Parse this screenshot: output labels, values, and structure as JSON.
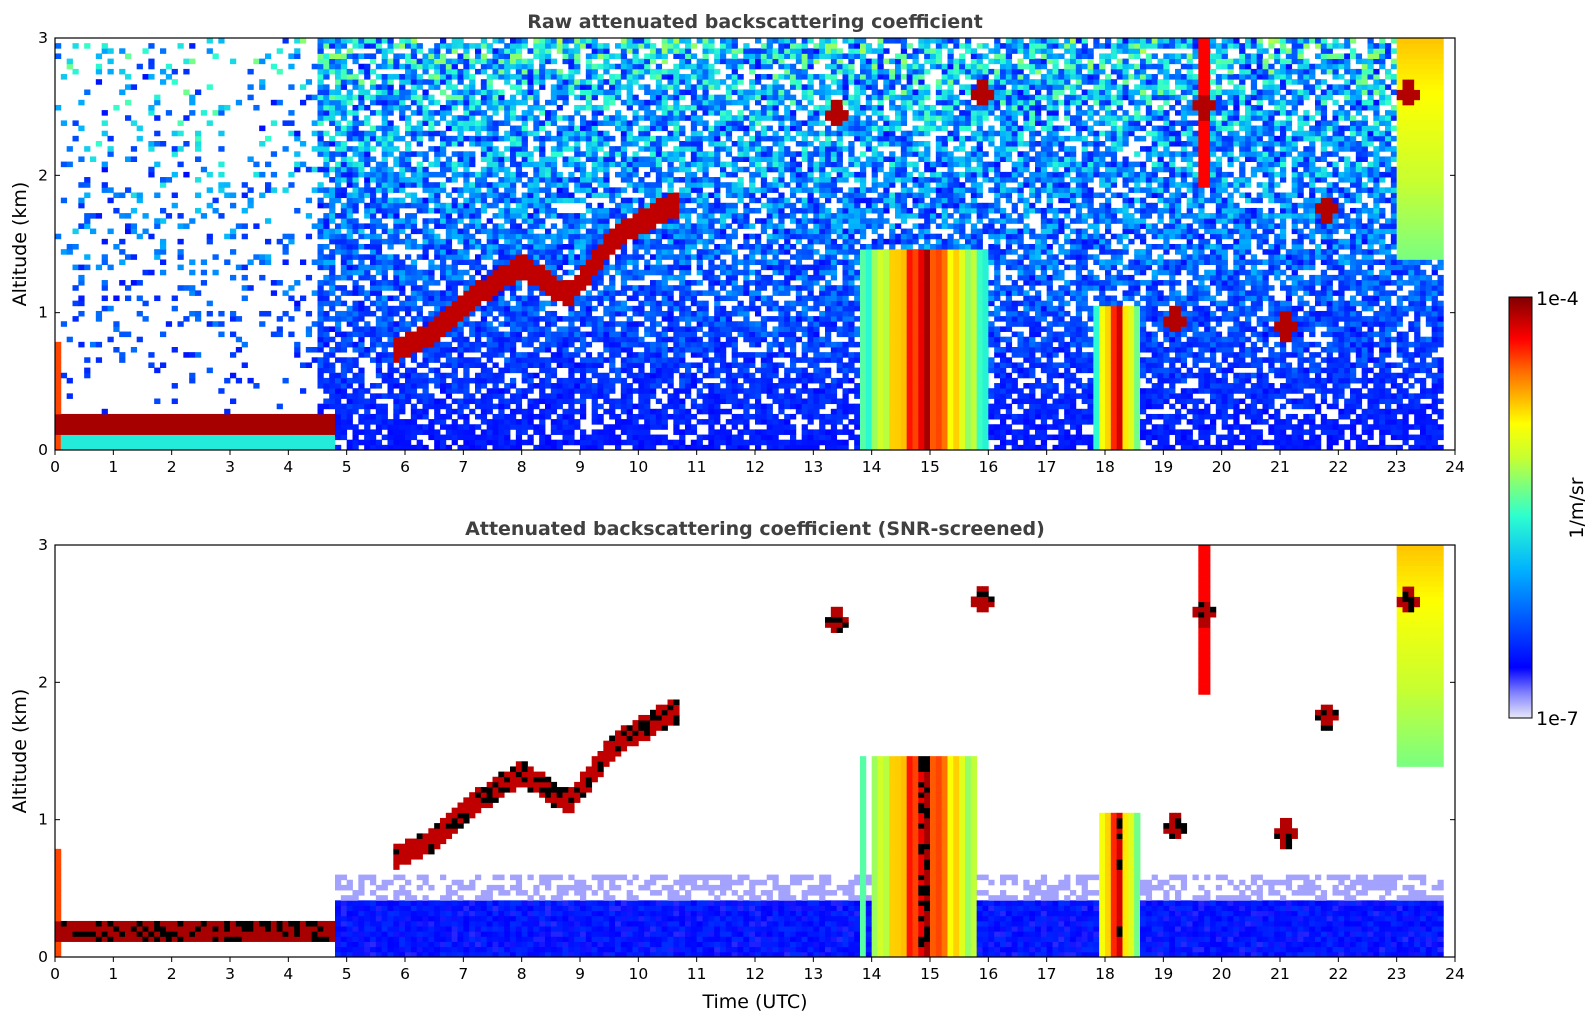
{
  "chart_data": [
    {
      "type": "heatmap",
      "title": "Raw attenuated backscattering coefficient",
      "xlabel": "",
      "ylabel": "Altitude (km)",
      "xlim": [
        0,
        24
      ],
      "ylim": [
        0,
        3
      ],
      "xticks": [
        "0",
        "1",
        "2",
        "3",
        "4",
        "5",
        "6",
        "7",
        "8",
        "9",
        "10",
        "11",
        "12",
        "13",
        "14",
        "15",
        "16",
        "17",
        "18",
        "19",
        "20",
        "21",
        "22",
        "23",
        "24"
      ],
      "yticks": [
        "0",
        "1",
        "2",
        "3"
      ],
      "layers": [
        {
          "feature": "near-surface aerosol layer",
          "start": 0.0,
          "end": 4.8,
          "base": 0.1,
          "top": 0.25,
          "level": 0.97
        },
        {
          "feature": "low-level noise / aerosol",
          "start": 4.8,
          "end": 23.8,
          "base": 0.0,
          "top": 0.45,
          "level": 0.35
        },
        {
          "feature": "rising boundary-layer top",
          "x": [
            5.8,
            6.5,
            7.3,
            8.0,
            8.8,
            9.6,
            10.3,
            10.7
          ],
          "y": [
            0.72,
            0.85,
            1.15,
            1.35,
            1.12,
            1.55,
            1.72,
            1.8
          ]
        },
        {
          "feature": "precipitating cloud",
          "start": 13.8,
          "end": 16.0,
          "base": 0.0,
          "top": 1.45,
          "level": 0.9
        },
        {
          "feature": "precipitating cloud",
          "start": 17.8,
          "end": 18.6,
          "base": 0.0,
          "top": 1.05,
          "level": 0.9
        },
        {
          "feature": "isolated cloud",
          "x": 13.4,
          "y": 2.45
        },
        {
          "feature": "isolated cloud",
          "x": 15.9,
          "y": 2.6
        },
        {
          "feature": "isolated cloud",
          "x": 19.7,
          "y": 2.5
        },
        {
          "feature": "isolated cloud",
          "x": 21.8,
          "y": 1.75
        },
        {
          "feature": "isolated cloud",
          "x": 21.1,
          "y": 0.9
        },
        {
          "feature": "isolated cloud",
          "x": 19.2,
          "y": 0.95
        },
        {
          "feature": "high cloud",
          "x": 23.2,
          "y": 2.6
        }
      ]
    },
    {
      "type": "heatmap",
      "title": "Attenuated backscattering coefficient (SNR-screened)",
      "xlabel": "Time (UTC)",
      "ylabel": "Altitude (km)",
      "xlim": [
        0,
        24
      ],
      "ylim": [
        0,
        3
      ],
      "xticks": [
        "0",
        "1",
        "2",
        "3",
        "4",
        "5",
        "6",
        "7",
        "8",
        "9",
        "10",
        "11",
        "12",
        "13",
        "14",
        "15",
        "16",
        "17",
        "18",
        "19",
        "20",
        "21",
        "22",
        "23",
        "24"
      ],
      "yticks": [
        "0",
        "1",
        "2",
        "3"
      ],
      "screened": true
    }
  ],
  "colorbar": {
    "label": "1/m/sr",
    "max_label": "1e-4",
    "min_label": "1e-7",
    "colormap": "jet",
    "colors": [
      "#e8e8f8",
      "#0000ff",
      "#00b0ff",
      "#2dffcf",
      "#ffff00",
      "#ff7000",
      "#ff0000",
      "#800000"
    ]
  }
}
